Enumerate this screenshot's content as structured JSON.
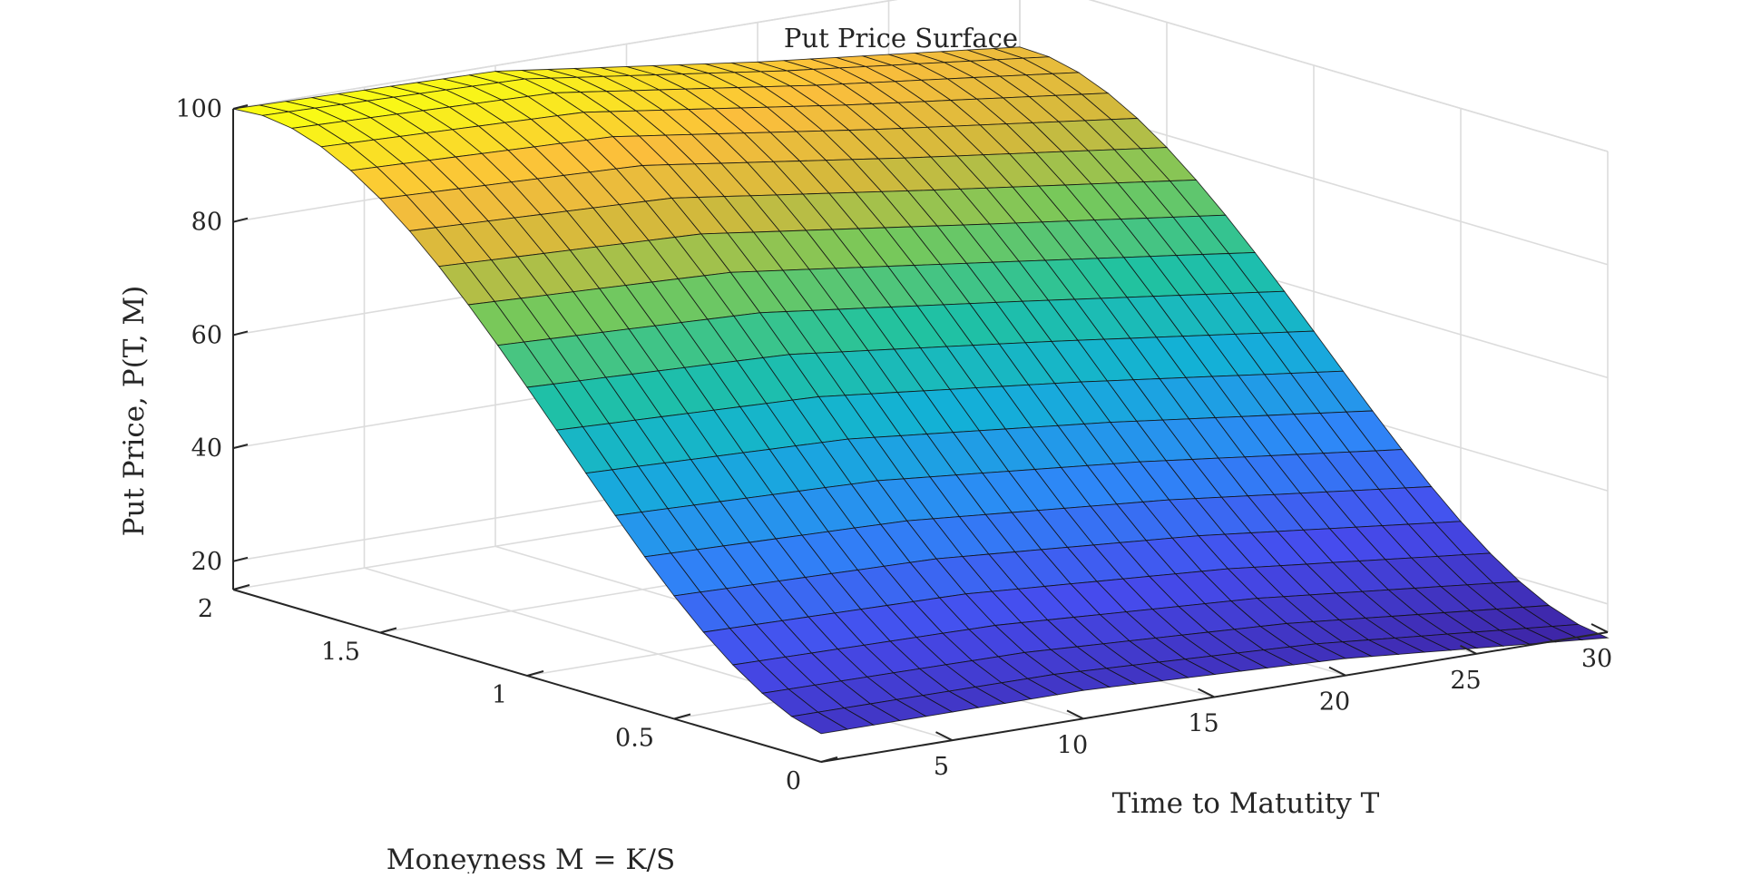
{
  "chart_data": {
    "type": "surface",
    "title": "Put Price Surface",
    "xlabel": "Time to Matutity T",
    "ylabel": "Moneyness M = K/S",
    "zlabel": "Put Price, P(T, M)",
    "xlim": [
      0,
      30
    ],
    "ylim": [
      0,
      2
    ],
    "zlim": [
      15,
      100
    ],
    "x_ticks": [
      "5",
      "10",
      "15",
      "20",
      "25",
      "30"
    ],
    "y_ticks": [
      "0",
      "0.5",
      "1",
      "1.5",
      "2"
    ],
    "z_ticks": [
      "20",
      "40",
      "60",
      "80",
      "100"
    ],
    "grid": true,
    "colormap": "parula",
    "grid_mesh": {
      "x_steps": 30,
      "y_steps": 20
    },
    "surface_samples": {
      "T_at_M2": {
        "T": [
          0,
          10,
          20,
          30
        ],
        "P": [
          100,
          99,
          93,
          88
        ]
      },
      "T_at_M0": {
        "T": [
          0,
          10,
          20,
          30
        ],
        "P": [
          20,
          20,
          18,
          14
        ]
      },
      "M_at_T0": {
        "M": [
          0,
          0.5,
          1,
          1.5,
          2
        ],
        "P": [
          20,
          30,
          55,
          85,
          100
        ]
      },
      "M_at_T30": {
        "M": [
          0,
          0.5,
          1,
          1.5,
          2
        ],
        "P": [
          14,
          30,
          50,
          72,
          88
        ]
      }
    }
  }
}
